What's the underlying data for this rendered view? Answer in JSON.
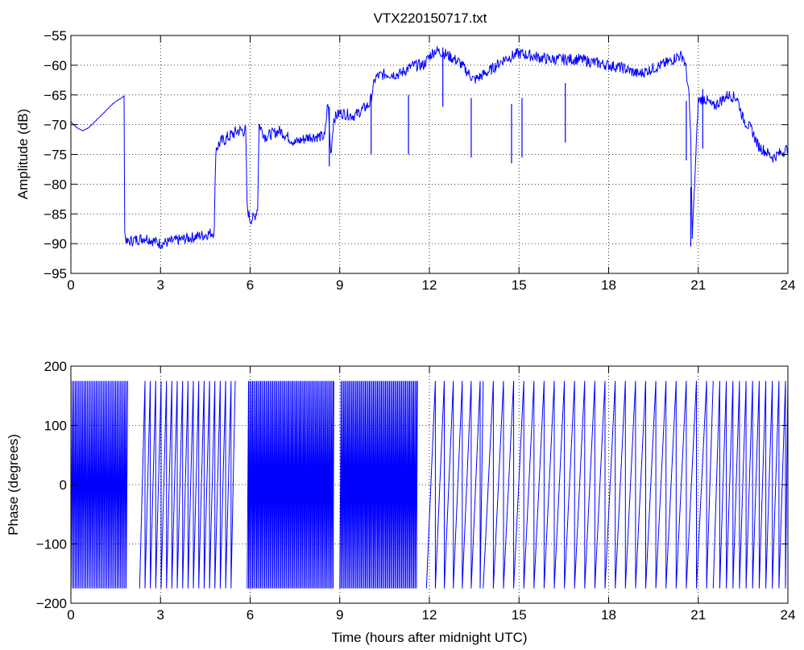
{
  "title": "VTX220150717.txt",
  "colors": {
    "series": "#0000ff",
    "axes": "#000000",
    "grid": "#000000",
    "background": "#ffffff"
  },
  "chart_data": [
    {
      "type": "line",
      "ylabel": "Amplitude (dB)",
      "xlim": [
        0,
        24
      ],
      "ylim": [
        -95,
        -55
      ],
      "xticks": [
        "0",
        "3",
        "6",
        "9",
        "12",
        "15",
        "18",
        "21",
        "24"
      ],
      "yticks": [
        "−95",
        "−90",
        "−85",
        "−80",
        "−75",
        "−70",
        "−65",
        "−60",
        "−55"
      ],
      "grid": true,
      "series": [
        {
          "color": "#0000ff",
          "x": [
            0,
            0.2,
            0.4,
            0.6,
            0.8,
            1.0,
            1.2,
            1.4,
            1.6,
            1.78,
            1.8,
            1.85,
            2.0,
            2.5,
            3.0,
            3.5,
            4.0,
            4.5,
            4.8,
            4.85,
            5.0,
            5.3,
            5.6,
            5.85,
            5.9,
            6.0,
            6.15,
            6.25,
            6.3,
            6.5,
            7.0,
            7.5,
            8.0,
            8.5,
            8.6,
            8.7,
            8.8,
            9.0,
            9.5,
            10.0,
            10.2,
            10.5,
            11.0,
            11.3,
            11.5,
            11.8,
            12.0,
            12.2,
            12.5,
            13.0,
            13.5,
            14.0,
            14.5,
            15.0,
            15.5,
            16.0,
            16.5,
            17.0,
            17.5,
            18.0,
            18.5,
            19.0,
            19.5,
            20.0,
            20.3,
            20.5,
            20.6,
            20.7,
            20.75,
            20.8,
            21.0,
            21.2,
            21.5,
            22.0,
            22.3,
            22.5,
            22.8,
            23.0,
            23.5,
            24.0
          ],
          "y": [
            -69.5,
            -70.5,
            -71,
            -70.5,
            -69.5,
            -68.5,
            -67.5,
            -66.5,
            -65.8,
            -65.2,
            -88,
            -90,
            -89.5,
            -89,
            -90,
            -89.5,
            -89,
            -88.5,
            -88,
            -74,
            -73,
            -72,
            -71,
            -71,
            -84,
            -86,
            -85.5,
            -84,
            -70,
            -72,
            -71,
            -73,
            -72,
            -72,
            -66,
            -75,
            -69,
            -68,
            -68.5,
            -66.5,
            -62,
            -61.5,
            -61.5,
            -60.5,
            -60,
            -60,
            -58.5,
            -57.5,
            -58,
            -59.5,
            -62.5,
            -61,
            -59,
            -58,
            -58.5,
            -59,
            -59,
            -59,
            -59.5,
            -60,
            -60.5,
            -61.5,
            -60.5,
            -59.5,
            -58.5,
            -58.5,
            -61,
            -66,
            -73,
            -89,
            -66,
            -65.5,
            -67,
            -65,
            -65.5,
            -69,
            -71,
            -73.5,
            -75.5,
            -74
          ]
        }
      ]
    },
    {
      "type": "scatter",
      "ylabel": "Phase (degrees)",
      "xlabel": "Time (hours after midnight UTC)",
      "xlim": [
        0,
        24
      ],
      "ylim": [
        -200,
        200
      ],
      "xticks": [
        "0",
        "3",
        "6",
        "9",
        "12",
        "15",
        "18",
        "21",
        "24"
      ],
      "yticks": [
        "−200",
        "−100",
        "0",
        "100",
        "200"
      ],
      "grid": true,
      "series": [
        {
          "color": "#0000ff",
          "wrap_segments": [
            {
              "x": [
                0.0,
                1.9
              ],
              "period_hours": 0.05
            },
            {
              "x": [
                2.3,
                5.5
              ],
              "period_hours": 0.18
            },
            {
              "x": [
                5.9,
                8.8
              ],
              "period_hours": 0.045
            },
            {
              "x": [
                9.0,
                11.6
              ],
              "period_hours": 0.045
            },
            {
              "x": [
                11.9,
                13.8
              ],
              "period_hours": 0.3
            },
            {
              "x": [
                13.8,
                21.5
              ],
              "period_hours": 0.34
            },
            {
              "x": [
                21.5,
                24.0
              ],
              "period_hours": 0.22
            }
          ]
        }
      ]
    }
  ]
}
